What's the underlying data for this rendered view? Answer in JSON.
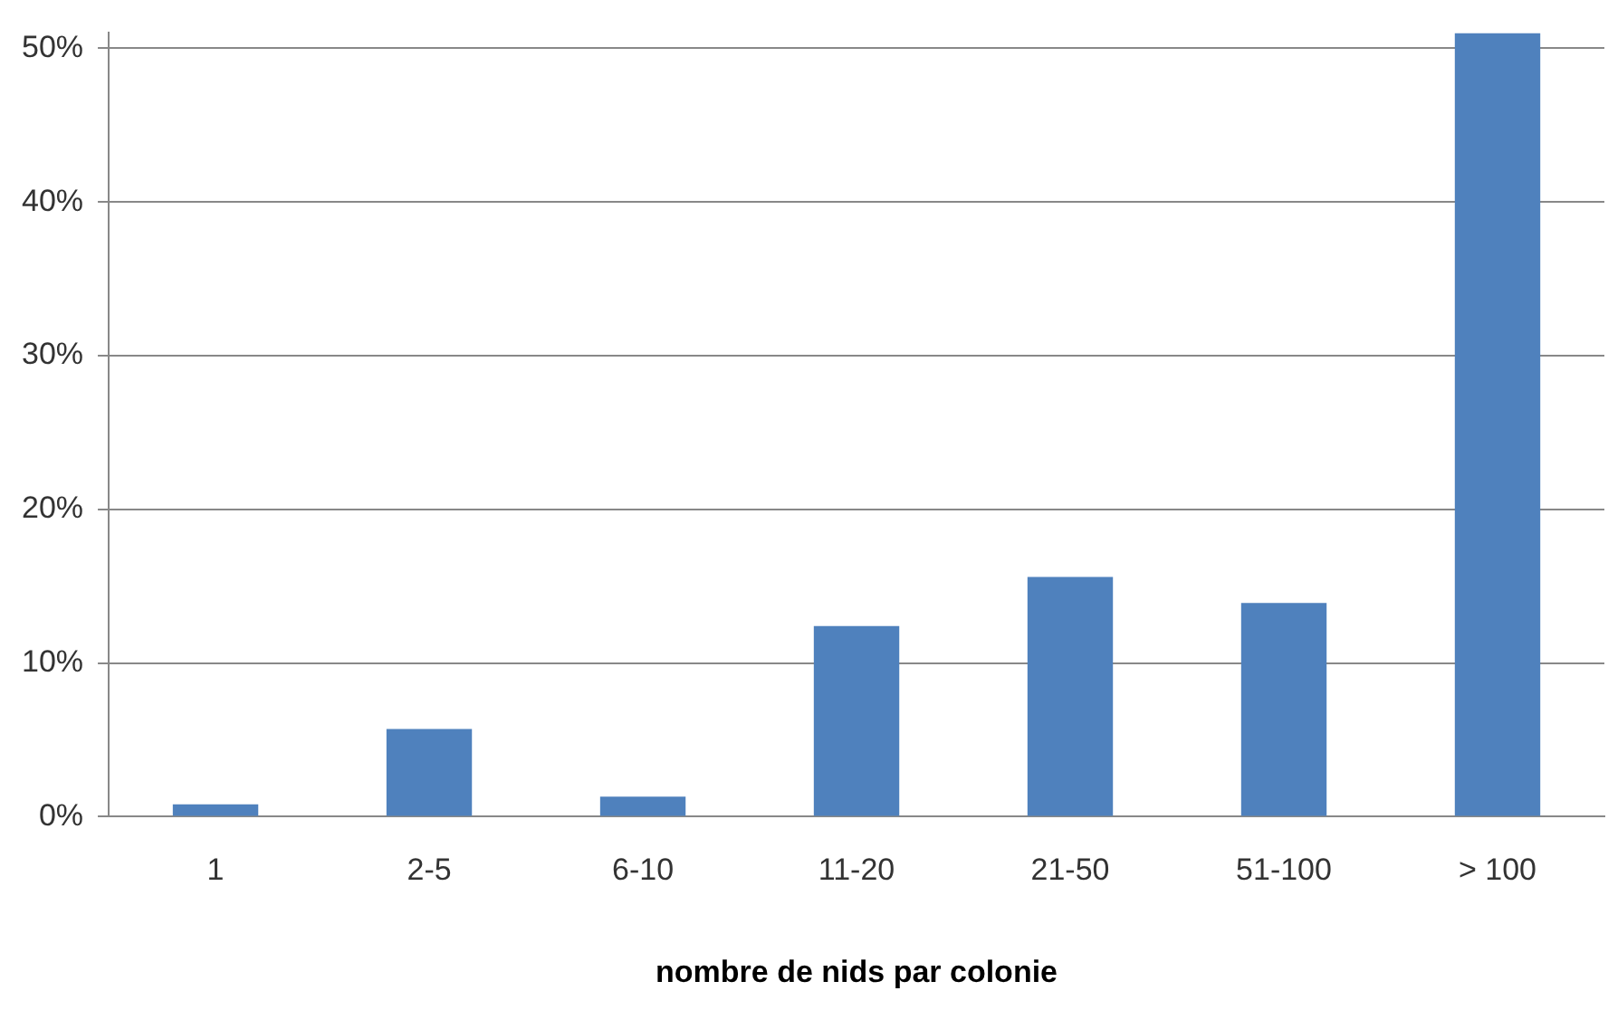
{
  "chart_data": {
    "type": "bar",
    "xlabel": "nombre de nids par colonie",
    "categories": [
      "1",
      "2-5",
      "6-10",
      "11-20",
      "21-50",
      "51-100",
      "> 100"
    ],
    "values": [
      0.8,
      5.7,
      1.3,
      12.4,
      15.6,
      13.9,
      51
    ],
    "color": "#4f81bd",
    "ylim": [
      0,
      51
    ],
    "yticks": [
      {
        "value": 0,
        "label": "0%"
      },
      {
        "value": 10,
        "label": "10%"
      },
      {
        "value": 20,
        "label": "20%"
      },
      {
        "value": 30,
        "label": "30%"
      },
      {
        "value": 40,
        "label": "40%"
      },
      {
        "value": 50,
        "label": "50%"
      }
    ],
    "grid": "y",
    "legend": false
  }
}
